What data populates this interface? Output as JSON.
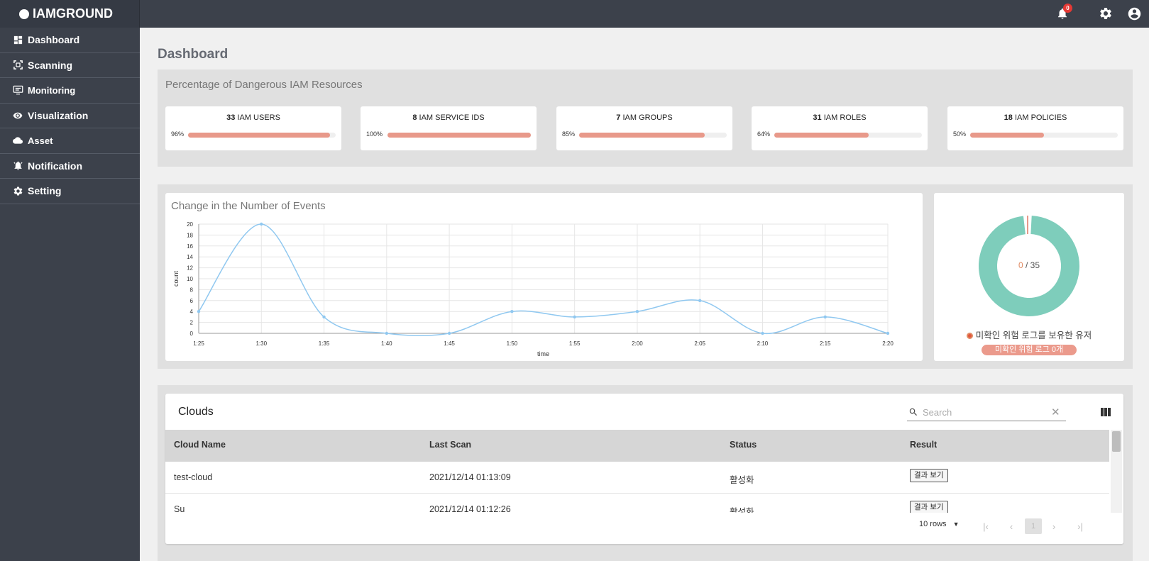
{
  "app": {
    "logo_text": "IAMGROUND",
    "notification_count": "0"
  },
  "sidebar": {
    "items": [
      {
        "label": "Dashboard",
        "icon": "dashboard-icon"
      },
      {
        "label": "Scanning",
        "icon": "scan-icon"
      },
      {
        "label": "Monitoring",
        "icon": "monitor-icon"
      },
      {
        "label": "Visualization",
        "icon": "eye-icon"
      },
      {
        "label": "Asset",
        "icon": "cloud-icon"
      },
      {
        "label": "Notification",
        "icon": "bell-icon"
      },
      {
        "label": "Setting",
        "icon": "gear-icon"
      }
    ]
  },
  "page": {
    "title": "Dashboard"
  },
  "resources": {
    "title": "Percentage of Dangerous IAM Resources",
    "cards": [
      {
        "count": "33",
        "label": "IAM USERS",
        "percent_text": "96%",
        "percent": 0.96
      },
      {
        "count": "8",
        "label": "IAM SERVICE IDS",
        "percent_text": "100%",
        "percent": 1.0
      },
      {
        "count": "7",
        "label": "IAM GROUPS",
        "percent_text": "85%",
        "percent": 0.85
      },
      {
        "count": "31",
        "label": "IAM ROLES",
        "percent_text": "64%",
        "percent": 0.64
      },
      {
        "count": "18",
        "label": "IAM POLICIES",
        "percent_text": "50%",
        "percent": 0.5
      }
    ],
    "bar_color": "#e8998a"
  },
  "events_chart": {
    "title": "Change in the Number of Events"
  },
  "chart_data": {
    "type": "line",
    "title": "Change in the Number of Events",
    "xlabel": "time",
    "ylabel": "count",
    "x": [
      "1:25",
      "1:30",
      "1:35",
      "1:40",
      "1:45",
      "1:50",
      "1:55",
      "2:00",
      "2:05",
      "2:10",
      "2:15",
      "2:20"
    ],
    "values": [
      4,
      20,
      3,
      0,
      0,
      4,
      3,
      4,
      6,
      0,
      3,
      0
    ],
    "yticks": [
      0,
      2,
      4,
      6,
      8,
      10,
      12,
      14,
      16,
      18,
      20
    ],
    "ylim": [
      0,
      20
    ],
    "grid": true,
    "color": "#90c8f0"
  },
  "donut": {
    "value": "0",
    "separator": " / ",
    "total": "35",
    "legend": "미확인 위험 로그를 보유한 유저",
    "pill": "미확인 위험 로그 0개",
    "ring_color": "#7ecdbb",
    "accent_color": "#e8998a"
  },
  "clouds": {
    "title": "Clouds",
    "search_placeholder": "Search",
    "columns": [
      "Cloud Name",
      "Last Scan",
      "Status",
      "Result"
    ],
    "rows": [
      {
        "name": "test-cloud",
        "last_scan": "2021/12/14 01:13:09",
        "status": "활성화",
        "result": "결과 보기"
      },
      {
        "name": "Su",
        "last_scan": "2021/12/14 01:12:26",
        "status": "활성화",
        "result": "결과 보기"
      }
    ],
    "rows_per_page": "10 rows",
    "page": "1"
  }
}
